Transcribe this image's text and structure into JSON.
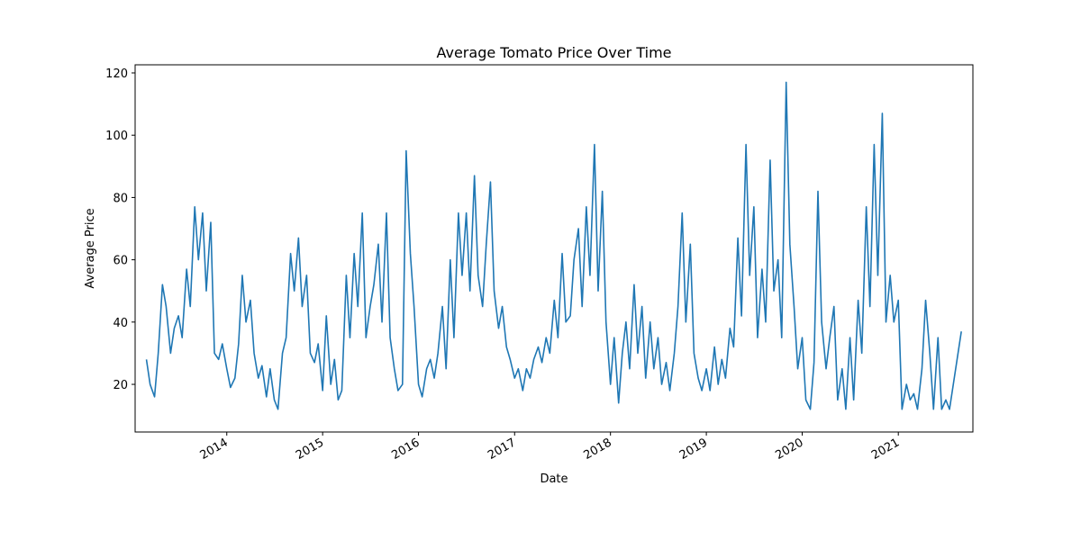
{
  "chart_data": {
    "type": "line",
    "title": "Average Tomato Price Over Time",
    "x_label": "Date",
    "y_label": "Average Price",
    "color": "#1f77b4",
    "x": [
      "2013-03-01",
      "2013-03-15",
      "2013-04-01",
      "2013-04-15",
      "2013-05-01",
      "2013-05-15",
      "2013-06-01",
      "2013-06-15",
      "2013-07-01",
      "2013-07-15",
      "2013-08-01",
      "2013-08-15",
      "2013-09-01",
      "2013-09-15",
      "2013-10-01",
      "2013-10-15",
      "2013-11-01",
      "2013-11-15",
      "2013-12-01",
      "2013-12-15",
      "2014-01-01",
      "2014-01-15",
      "2014-02-01",
      "2014-02-15",
      "2014-03-01",
      "2014-03-15",
      "2014-04-01",
      "2014-04-15",
      "2014-05-01",
      "2014-05-15",
      "2014-06-01",
      "2014-06-15",
      "2014-07-01",
      "2014-07-15",
      "2014-08-01",
      "2014-08-15",
      "2014-09-01",
      "2014-09-15",
      "2014-10-01",
      "2014-10-15",
      "2014-11-01",
      "2014-11-15",
      "2014-12-01",
      "2014-12-15",
      "2015-01-01",
      "2015-01-15",
      "2015-02-01",
      "2015-02-15",
      "2015-03-01",
      "2015-03-15",
      "2015-04-01",
      "2015-04-15",
      "2015-05-01",
      "2015-05-15",
      "2015-06-01",
      "2015-06-15",
      "2015-07-01",
      "2015-07-15",
      "2015-08-01",
      "2015-08-15",
      "2015-09-01",
      "2015-09-15",
      "2015-10-01",
      "2015-10-15",
      "2015-11-01",
      "2015-11-15",
      "2015-12-01",
      "2015-12-15",
      "2016-01-01",
      "2016-01-15",
      "2016-02-01",
      "2016-02-15",
      "2016-03-01",
      "2016-03-15",
      "2016-04-01",
      "2016-04-15",
      "2016-05-01",
      "2016-05-15",
      "2016-06-01",
      "2016-06-15",
      "2016-07-01",
      "2016-07-15",
      "2016-08-01",
      "2016-08-15",
      "2016-09-01",
      "2016-09-15",
      "2016-10-01",
      "2016-10-15",
      "2016-11-01",
      "2016-11-15",
      "2016-12-01",
      "2016-12-15",
      "2017-01-01",
      "2017-01-15",
      "2017-02-01",
      "2017-02-15",
      "2017-03-01",
      "2017-03-15",
      "2017-04-01",
      "2017-04-15",
      "2017-05-01",
      "2017-05-15",
      "2017-06-01",
      "2017-06-15",
      "2017-07-01",
      "2017-07-15",
      "2017-08-01",
      "2017-08-15",
      "2017-09-01",
      "2017-09-15",
      "2017-10-01",
      "2017-10-15",
      "2017-11-01",
      "2017-11-15",
      "2017-12-01",
      "2017-12-15",
      "2018-01-01",
      "2018-01-15",
      "2018-02-01",
      "2018-02-15",
      "2018-03-01",
      "2018-03-15",
      "2018-04-01",
      "2018-04-15",
      "2018-05-01",
      "2018-05-15",
      "2018-06-01",
      "2018-06-15",
      "2018-07-01",
      "2018-07-15",
      "2018-08-01",
      "2018-08-15",
      "2018-09-01",
      "2018-09-15",
      "2018-10-01",
      "2018-10-15",
      "2018-11-01",
      "2018-11-15",
      "2018-12-01",
      "2018-12-15",
      "2019-01-01",
      "2019-01-15",
      "2019-02-01",
      "2019-02-15",
      "2019-03-01",
      "2019-03-15",
      "2019-04-01",
      "2019-04-15",
      "2019-05-01",
      "2019-05-15",
      "2019-06-01",
      "2019-06-15",
      "2019-07-01",
      "2019-07-15",
      "2019-08-01",
      "2019-08-15",
      "2019-09-01",
      "2019-09-15",
      "2019-10-01",
      "2019-10-15",
      "2019-11-01",
      "2019-11-15",
      "2019-12-01",
      "2019-12-15",
      "2020-01-01",
      "2020-01-15",
      "2020-02-01",
      "2020-02-15",
      "2020-03-01",
      "2020-03-15",
      "2020-04-01",
      "2020-04-15",
      "2020-05-01",
      "2020-05-15",
      "2020-06-01",
      "2020-06-15",
      "2020-07-01",
      "2020-07-15",
      "2020-08-01",
      "2020-08-15",
      "2020-09-01",
      "2020-09-15",
      "2020-10-01",
      "2020-10-15",
      "2020-11-01",
      "2020-11-15",
      "2020-12-01",
      "2020-12-15",
      "2021-01-01",
      "2021-01-15",
      "2021-02-01",
      "2021-02-15",
      "2021-03-01",
      "2021-03-15",
      "2021-04-01",
      "2021-04-15",
      "2021-05-01",
      "2021-05-15",
      "2021-06-01",
      "2021-06-15",
      "2021-07-01",
      "2021-07-15",
      "2021-08-29"
    ],
    "values": [
      28,
      20,
      16,
      30,
      52,
      45,
      30,
      38,
      42,
      35,
      57,
      45,
      77,
      60,
      75,
      50,
      72,
      30,
      28,
      33,
      25,
      19,
      22,
      33,
      55,
      40,
      47,
      30,
      22,
      26,
      16,
      25,
      15,
      12,
      30,
      35,
      62,
      50,
      67,
      45,
      55,
      30,
      27,
      33,
      18,
      42,
      20,
      28,
      15,
      18,
      55,
      35,
      62,
      45,
      75,
      35,
      45,
      52,
      65,
      40,
      75,
      35,
      25,
      18,
      20,
      95,
      62,
      45,
      20,
      16,
      25,
      28,
      22,
      30,
      45,
      25,
      60,
      35,
      75,
      55,
      75,
      50,
      87,
      55,
      45,
      65,
      85,
      50,
      38,
      45,
      32,
      28,
      22,
      25,
      18,
      25,
      22,
      28,
      32,
      27,
      35,
      30,
      47,
      35,
      62,
      40,
      42,
      60,
      70,
      45,
      77,
      55,
      97,
      50,
      82,
      40,
      20,
      35,
      14,
      30,
      40,
      25,
      52,
      30,
      45,
      22,
      40,
      25,
      35,
      20,
      27,
      18,
      30,
      45,
      75,
      40,
      65,
      30,
      22,
      18,
      25,
      18,
      32,
      20,
      28,
      22,
      38,
      32,
      67,
      42,
      97,
      55,
      77,
      35,
      57,
      40,
      92,
      50,
      60,
      35,
      117,
      65,
      45,
      25,
      35,
      15,
      12,
      27,
      82,
      40,
      25,
      35,
      45,
      15,
      25,
      12,
      35,
      15,
      47,
      30,
      77,
      45,
      97,
      55,
      107,
      40,
      55,
      40,
      47,
      12,
      20,
      15,
      17,
      12,
      25,
      47,
      30,
      12,
      35,
      12,
      15,
      12,
      37
    ],
    "xlim": [
      "2013-01-17",
      "2021-10-12"
    ],
    "xticks": [
      {
        "value": "2014-01-01",
        "label": "2014"
      },
      {
        "value": "2015-01-01",
        "label": "2015"
      },
      {
        "value": "2016-01-01",
        "label": "2016"
      },
      {
        "value": "2017-01-01",
        "label": "2017"
      },
      {
        "value": "2018-01-01",
        "label": "2018"
      },
      {
        "value": "2019-01-01",
        "label": "2019"
      },
      {
        "value": "2020-01-01",
        "label": "2020"
      },
      {
        "value": "2021-01-01",
        "label": "2021"
      }
    ],
    "ylim": [
      4.7,
      122.6
    ],
    "yticks": [
      20,
      40,
      60,
      80,
      100,
      120
    ],
    "grid": false
  }
}
